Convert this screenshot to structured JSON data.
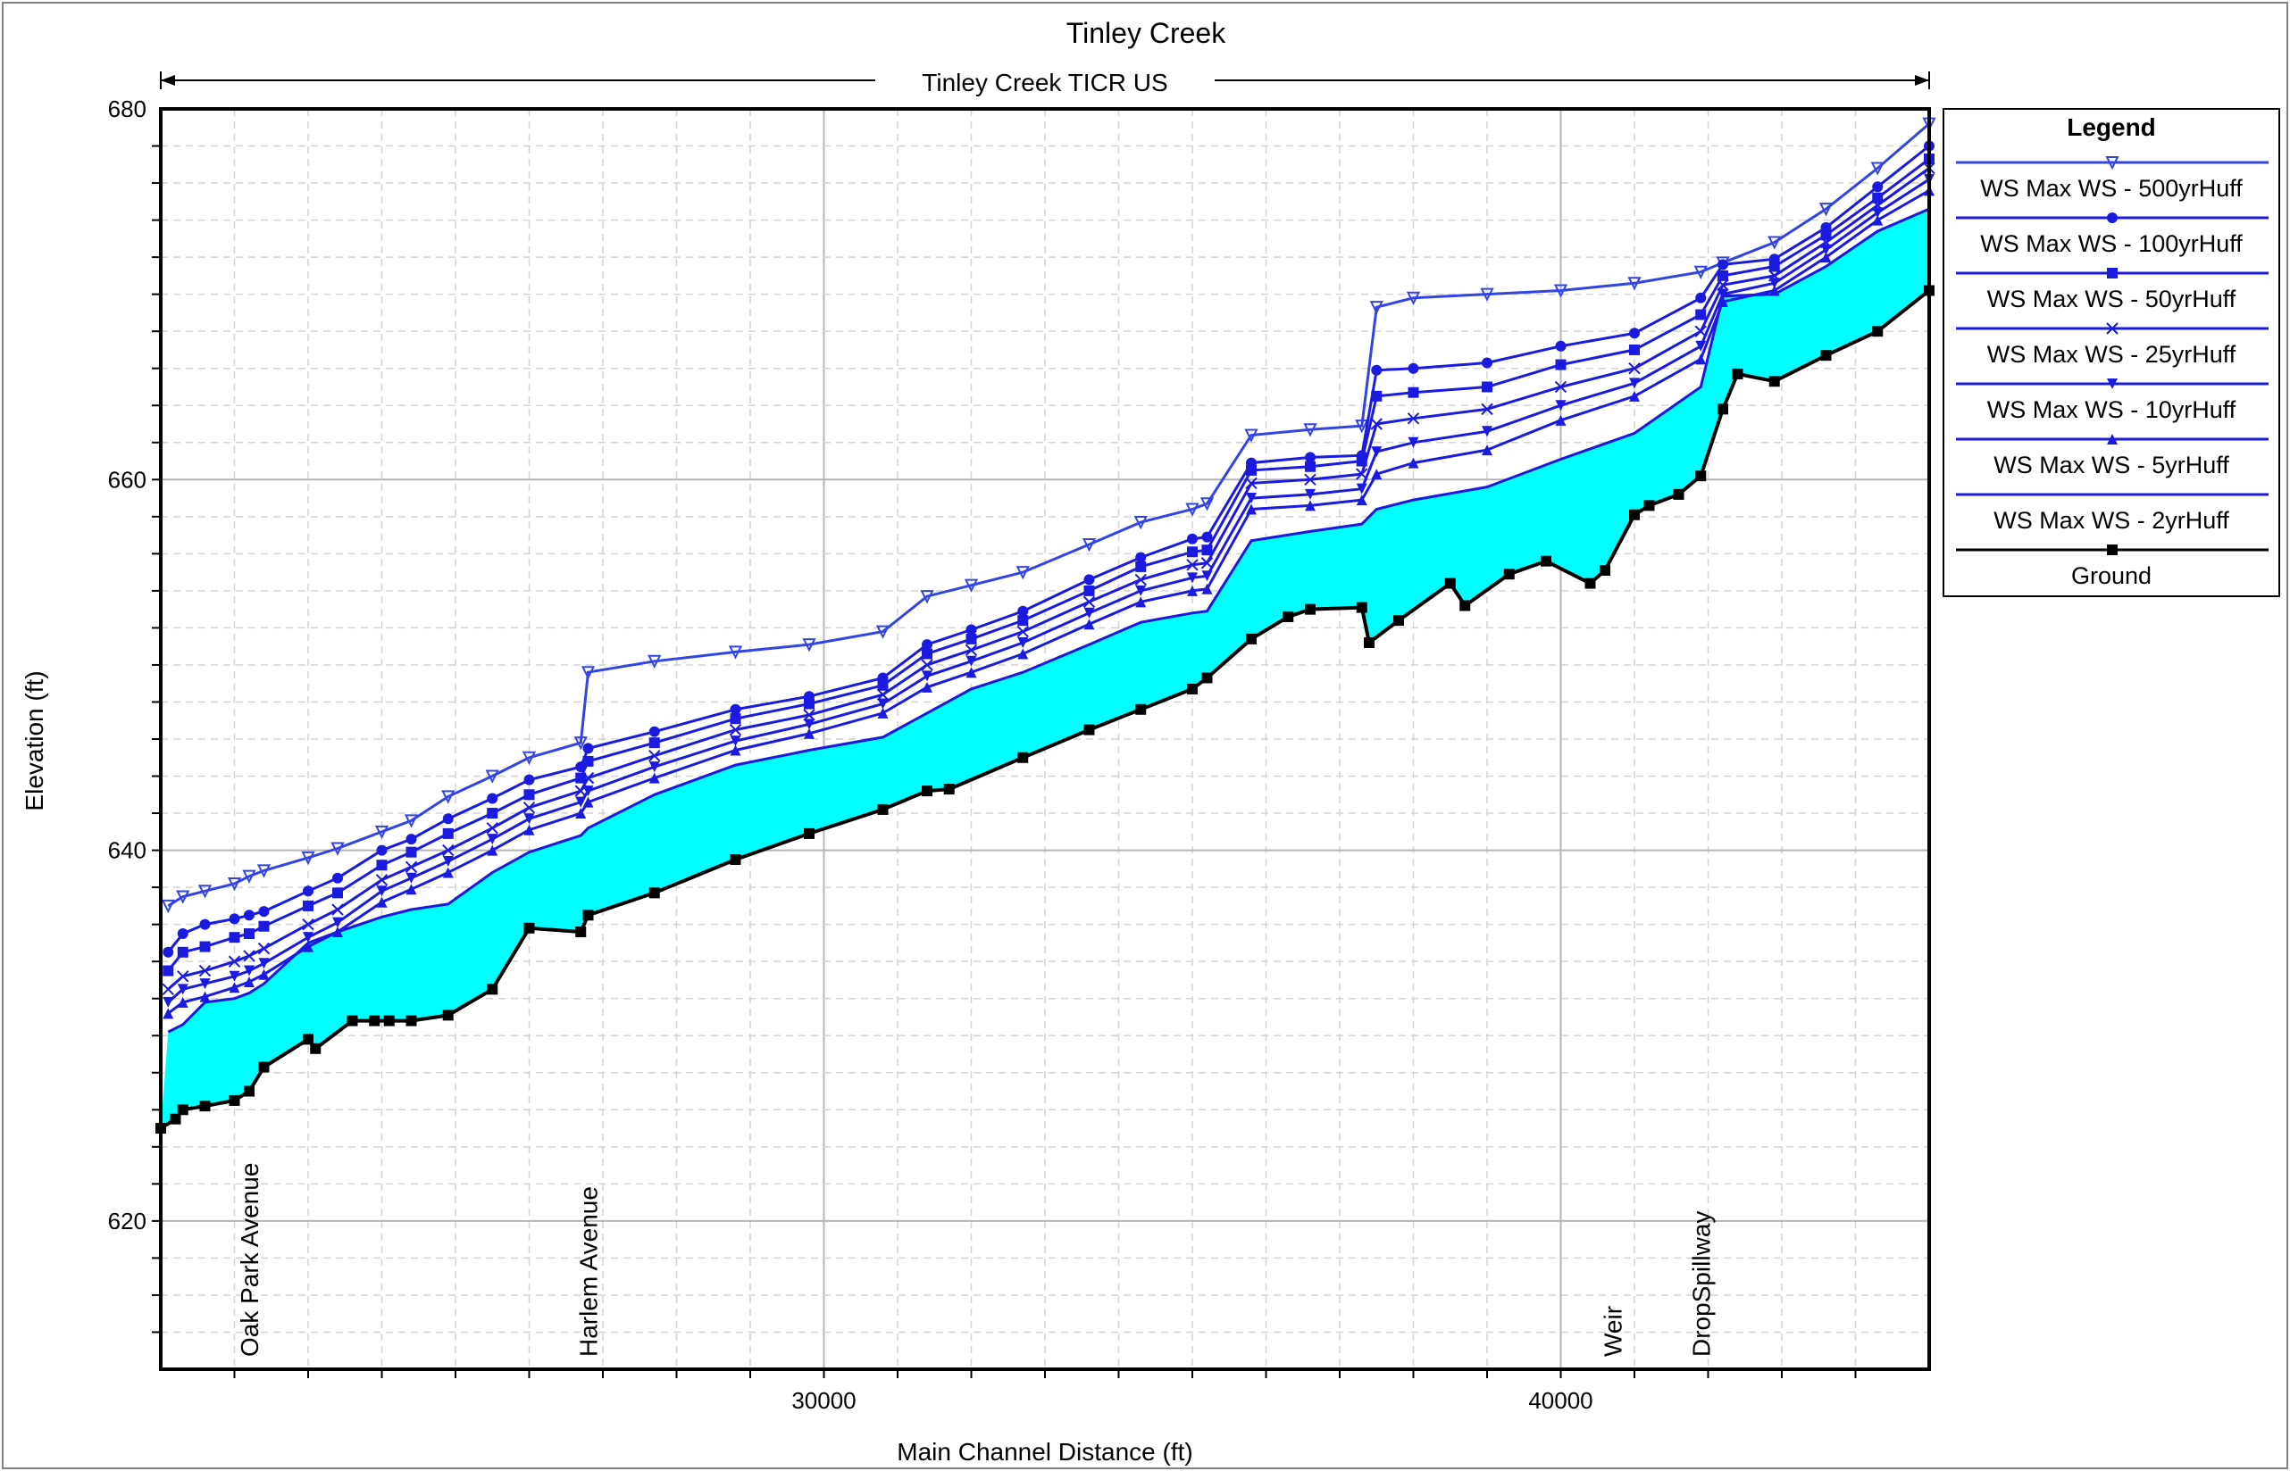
{
  "chart_data": {
    "type": "line",
    "title": "Tinley Creek",
    "subtitle": "Tinley Creek TICR US",
    "xlabel": "Main Channel Distance (ft)",
    "ylabel": "Elevation (ft)",
    "xlim": [
      21000,
      45000
    ],
    "ylim": [
      612,
      680
    ],
    "xticks": [
      30000,
      40000
    ],
    "yticks": [
      620,
      640,
      660,
      680
    ],
    "grid": true,
    "legend": {
      "title": "Legend",
      "placement": "right",
      "entries": [
        {
          "label": "WS  Max WS - 500yrHuff",
          "color": "#3344e6",
          "marker": "triangle-down-open"
        },
        {
          "label": "WS  Max WS - 100yrHuff",
          "color": "#1a1ae0",
          "marker": "circle"
        },
        {
          "label": "WS  Max WS - 50yrHuff",
          "color": "#1a1ae0",
          "marker": "square"
        },
        {
          "label": "WS  Max WS - 25yrHuff",
          "color": "#1a1ae0",
          "marker": "x"
        },
        {
          "label": "WS  Max WS - 10yrHuff",
          "color": "#1a1ae0",
          "marker": "triangle-down"
        },
        {
          "label": "WS  Max WS - 5yrHuff",
          "color": "#1a1ae0",
          "marker": "triangle-up"
        },
        {
          "label": "WS  Max WS - 2yrHuff",
          "color": "#1a1ae0",
          "marker": "none"
        },
        {
          "label": "Ground",
          "color": "#000000",
          "marker": "square"
        }
      ]
    },
    "annotations": [
      {
        "text": "Oak Park Avenue",
        "x": 22200
      },
      {
        "text": "Harlem Avenue",
        "x": 26800
      },
      {
        "text": "Weir",
        "x": 40700
      },
      {
        "text": "DropSpillway",
        "x": 41900
      }
    ],
    "series": [
      {
        "name": "WS  Max WS - 500yrHuff",
        "x": [
          21100,
          21300,
          21600,
          22000,
          22200,
          22400,
          23000,
          23400,
          24000,
          24400,
          24900,
          25500,
          26000,
          26700,
          26800,
          27700,
          28800,
          29800,
          30800,
          31400,
          32000,
          32700,
          33600,
          34300,
          35000,
          35200,
          35800,
          36600,
          37300,
          37500,
          38000,
          39000,
          40000,
          41000,
          41900,
          42200,
          42900,
          43600,
          44300,
          45000
        ],
        "values": [
          637.0,
          637.5,
          637.8,
          638.2,
          638.6,
          638.9,
          639.6,
          640.1,
          641.0,
          641.6,
          642.9,
          644.0,
          645.0,
          645.8,
          649.6,
          650.2,
          650.7,
          651.1,
          651.8,
          653.7,
          654.3,
          655.0,
          656.5,
          657.7,
          658.4,
          658.7,
          662.4,
          662.7,
          662.9,
          669.3,
          669.8,
          670.0,
          670.2,
          670.6,
          671.2,
          671.7,
          672.8,
          674.6,
          676.8,
          679.2
        ]
      },
      {
        "name": "WS  Max WS - 100yrHuff",
        "x": [
          21100,
          21300,
          21600,
          22000,
          22200,
          22400,
          23000,
          23400,
          24000,
          24400,
          24900,
          25500,
          26000,
          26700,
          26800,
          27700,
          28800,
          29800,
          30800,
          31400,
          32000,
          32700,
          33600,
          34300,
          35000,
          35200,
          35800,
          36600,
          37300,
          37500,
          38000,
          39000,
          40000,
          41000,
          41900,
          42200,
          42900,
          43600,
          44300,
          45000
        ],
        "values": [
          634.5,
          635.5,
          636.0,
          636.3,
          636.5,
          636.7,
          637.8,
          638.5,
          640.0,
          640.6,
          641.7,
          642.8,
          643.8,
          644.5,
          645.5,
          646.4,
          647.6,
          648.3,
          649.3,
          651.1,
          651.9,
          652.9,
          654.6,
          655.8,
          656.8,
          656.9,
          660.9,
          661.2,
          661.3,
          665.9,
          666.0,
          666.3,
          667.2,
          667.9,
          669.8,
          671.6,
          671.9,
          673.6,
          675.8,
          678.0
        ]
      },
      {
        "name": "WS  Max WS - 50yrHuff",
        "x": [
          21100,
          21300,
          21600,
          22000,
          22200,
          22400,
          23000,
          23400,
          24000,
          24400,
          24900,
          25500,
          26000,
          26700,
          26800,
          27700,
          28800,
          29800,
          30800,
          31400,
          32000,
          32700,
          33600,
          34300,
          35000,
          35200,
          35800,
          36600,
          37300,
          37500,
          38000,
          39000,
          40000,
          41000,
          41900,
          42200,
          42900,
          43600,
          44300,
          45000
        ],
        "values": [
          633.5,
          634.5,
          634.8,
          635.3,
          635.5,
          635.9,
          637.0,
          637.7,
          639.2,
          639.9,
          640.9,
          642.0,
          643.0,
          643.9,
          644.8,
          645.8,
          647.1,
          647.9,
          648.9,
          650.6,
          651.4,
          652.4,
          654.0,
          655.3,
          656.1,
          656.2,
          660.5,
          660.7,
          661.0,
          664.5,
          664.7,
          665.0,
          666.2,
          667.0,
          668.9,
          671.0,
          671.5,
          673.2,
          675.2,
          677.3
        ]
      },
      {
        "name": "WS  Max WS - 25yrHuff",
        "x": [
          21100,
          21300,
          21600,
          22000,
          22200,
          22400,
          23000,
          23400,
          24000,
          24400,
          24900,
          25500,
          26000,
          26700,
          26800,
          27700,
          28800,
          29800,
          30800,
          31400,
          32000,
          32700,
          33600,
          34300,
          35000,
          35200,
          35800,
          36600,
          37300,
          37500,
          38000,
          39000,
          40000,
          41000,
          41900,
          42200,
          42900,
          43600,
          44300,
          45000
        ],
        "values": [
          632.5,
          633.2,
          633.5,
          634.0,
          634.3,
          634.7,
          636.0,
          636.8,
          638.4,
          639.1,
          640.0,
          641.2,
          642.3,
          643.2,
          643.9,
          645.1,
          646.5,
          647.3,
          648.4,
          650.0,
          650.8,
          651.8,
          653.4,
          654.6,
          655.4,
          655.5,
          659.8,
          660.0,
          660.3,
          663.0,
          663.3,
          663.8,
          665.0,
          666.0,
          668.0,
          670.5,
          671.0,
          672.8,
          674.8,
          676.8
        ]
      },
      {
        "name": "WS  Max WS - 10yrHuff",
        "x": [
          21100,
          21300,
          21600,
          22000,
          22200,
          22400,
          23000,
          23400,
          24000,
          24400,
          24900,
          25500,
          26000,
          26700,
          26800,
          27700,
          28800,
          29800,
          30800,
          31400,
          32000,
          32700,
          33600,
          34300,
          35000,
          35200,
          35800,
          36600,
          37300,
          37500,
          38000,
          39000,
          40000,
          41000,
          41900,
          42200,
          42900,
          43600,
          44300,
          45000
        ],
        "values": [
          631.8,
          632.5,
          632.8,
          633.2,
          633.5,
          633.9,
          635.3,
          636.1,
          637.8,
          638.5,
          639.4,
          640.6,
          641.7,
          642.6,
          643.2,
          644.5,
          645.9,
          646.8,
          647.9,
          649.4,
          650.2,
          651.2,
          652.8,
          654.0,
          654.7,
          654.8,
          659.0,
          659.2,
          659.5,
          661.5,
          662.0,
          662.6,
          664.0,
          665.2,
          667.2,
          670.0,
          670.6,
          672.4,
          674.4,
          676.2
        ]
      },
      {
        "name": "WS  Max WS - 5yrHuff",
        "x": [
          21100,
          21300,
          21600,
          22000,
          22200,
          22400,
          23000,
          23400,
          24000,
          24400,
          24900,
          25500,
          26000,
          26700,
          26800,
          27700,
          28800,
          29800,
          30800,
          31400,
          32000,
          32700,
          33600,
          34300,
          35000,
          35200,
          35800,
          36600,
          37300,
          37500,
          38000,
          39000,
          40000,
          41000,
          41900,
          42200,
          42900,
          43600,
          44300,
          45000
        ],
        "values": [
          631.2,
          631.8,
          632.1,
          632.6,
          632.9,
          633.3,
          634.8,
          635.6,
          637.2,
          637.9,
          638.8,
          640.0,
          641.1,
          642.0,
          642.6,
          643.9,
          645.4,
          646.3,
          647.4,
          648.8,
          649.6,
          650.6,
          652.2,
          653.4,
          654.0,
          654.1,
          658.4,
          658.6,
          658.9,
          660.3,
          660.9,
          661.6,
          663.2,
          664.5,
          666.5,
          669.6,
          670.2,
          672.0,
          674.0,
          675.6
        ]
      },
      {
        "name": "WS  Max WS - 2yrHuff",
        "x": [
          21100,
          21300,
          21600,
          22000,
          22200,
          22400,
          23000,
          23400,
          24000,
          24400,
          24900,
          25500,
          26000,
          26700,
          26800,
          27700,
          28800,
          29800,
          30800,
          31400,
          32000,
          32700,
          33600,
          34300,
          35000,
          35200,
          35800,
          36600,
          37300,
          37500,
          38000,
          39000,
          40000,
          41000,
          41900,
          42200,
          42900,
          43600,
          44300,
          45000
        ],
        "values": [
          630.2,
          630.6,
          631.8,
          632.0,
          632.3,
          632.8,
          635.0,
          635.6,
          636.4,
          636.8,
          637.1,
          638.8,
          639.9,
          640.8,
          641.2,
          643.0,
          644.6,
          645.4,
          646.1,
          647.4,
          648.7,
          649.6,
          651.1,
          652.3,
          652.8,
          652.9,
          656.7,
          657.2,
          657.6,
          658.4,
          658.9,
          659.6,
          661.1,
          662.5,
          665.0,
          669.9,
          670.0,
          671.5,
          673.4,
          674.6
        ]
      },
      {
        "name": "Ground",
        "x": [
          21000,
          21200,
          21300,
          21600,
          22000,
          22200,
          22400,
          23000,
          23100,
          23600,
          23900,
          24100,
          24400,
          24900,
          25500,
          26000,
          26700,
          26800,
          27700,
          28800,
          29800,
          30800,
          31400,
          31700,
          32700,
          33600,
          34300,
          35000,
          35200,
          35800,
          36300,
          36600,
          37300,
          37400,
          37800,
          38500,
          38700,
          39300,
          39800,
          40400,
          40600,
          41000,
          41200,
          41600,
          41900,
          42200,
          42400,
          42900,
          43600,
          44300,
          45000
        ],
        "values": [
          625.0,
          625.5,
          626.0,
          626.2,
          626.5,
          627.0,
          628.3,
          629.8,
          629.3,
          630.8,
          630.8,
          630.8,
          630.8,
          631.1,
          632.5,
          635.8,
          635.6,
          636.5,
          637.7,
          639.5,
          640.9,
          642.2,
          643.2,
          643.3,
          645.0,
          646.5,
          647.6,
          648.7,
          649.3,
          651.4,
          652.6,
          653.0,
          653.1,
          651.2,
          652.4,
          654.4,
          653.2,
          654.9,
          655.6,
          654.4,
          655.1,
          658.1,
          658.6,
          659.2,
          660.2,
          663.8,
          665.7,
          665.3,
          666.7,
          668.0,
          670.2
        ]
      }
    ]
  }
}
